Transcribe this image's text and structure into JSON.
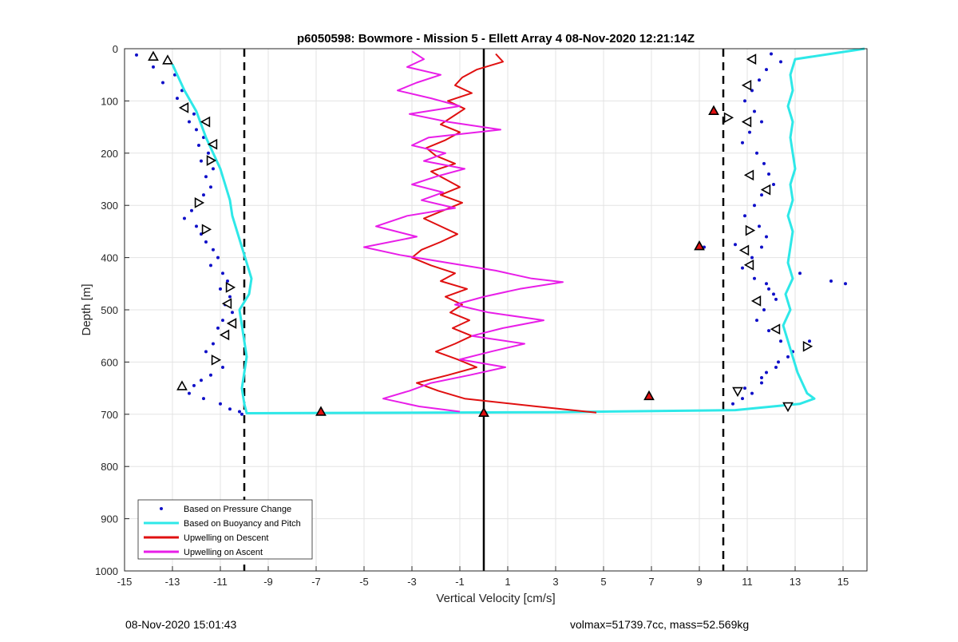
{
  "chart_data": {
    "type": "scatter",
    "title": "p6050598: Bowmore - Mission 5 - Ellett Array 4 08-Nov-2020 12:21:14Z",
    "xlabel": "Vertical Velocity [cm/s]",
    "ylabel": "Depth [m]",
    "xlim": [
      -15,
      16
    ],
    "ylim": [
      1000,
      0
    ],
    "y_reversed": true,
    "xticks": [
      -15,
      -13,
      -11,
      -9,
      -7,
      -5,
      -3,
      -1,
      1,
      3,
      5,
      7,
      9,
      11,
      13,
      15
    ],
    "yticks": [
      0,
      100,
      200,
      300,
      400,
      500,
      600,
      700,
      800,
      900,
      1000
    ],
    "grid": true,
    "legend_position": "bottom-left",
    "reference_lines": [
      {
        "x": -10,
        "style": "dashed",
        "color": "#000000"
      },
      {
        "x": 0,
        "style": "solid",
        "color": "#000000"
      },
      {
        "x": 10,
        "style": "dashed",
        "color": "#000000"
      }
    ],
    "series": [
      {
        "name": "Based on Pressure Change",
        "kind": "points",
        "color": "#1010c8",
        "x": [
          -14.5,
          -13.2,
          -13.8,
          -12.9,
          -13.4,
          -12.6,
          -12.8,
          -12.5,
          -12.1,
          -12.3,
          -12.0,
          -11.7,
          -11.9,
          -11.5,
          -11.8,
          -11.3,
          -11.6,
          -11.4,
          -11.7,
          -11.9,
          -12.2,
          -12.5,
          -12.0,
          -11.8,
          -11.6,
          -11.3,
          -11.1,
          -11.4,
          -10.9,
          -10.7,
          -11.0,
          -10.6,
          -10.8,
          -10.5,
          -10.9,
          -11.1,
          -10.7,
          -11.3,
          -11.6,
          -11.2,
          -10.9,
          -11.4,
          -11.8,
          -12.1,
          -12.6,
          -12.3,
          -11.7,
          -11.0,
          -10.6,
          -10.2,
          -10.1,
          12.0,
          12.4,
          11.8,
          11.5,
          11.2,
          10.9,
          11.3,
          11.6,
          11.1,
          10.8,
          11.4,
          11.7,
          11.9,
          12.1,
          11.6,
          11.3,
          10.9,
          11.5,
          11.8,
          11.6,
          11.2,
          10.5,
          9.2,
          10.8,
          11.3,
          11.9,
          12.2,
          11.7,
          11.4,
          11.9,
          12.4,
          12.1,
          11.8,
          13.2,
          14.5,
          15.1,
          13.6,
          12.9,
          12.3,
          11.8,
          11.6,
          11.2,
          10.8,
          10.4,
          10.9,
          11.6,
          12.2,
          12.7
        ],
        "y": [
          12,
          20,
          35,
          50,
          65,
          80,
          95,
          110,
          125,
          140,
          155,
          170,
          185,
          200,
          215,
          230,
          245,
          265,
          280,
          295,
          310,
          325,
          340,
          355,
          370,
          385,
          400,
          415,
          430,
          445,
          460,
          475,
          490,
          505,
          520,
          535,
          550,
          565,
          580,
          595,
          610,
          625,
          635,
          645,
          650,
          660,
          670,
          680,
          690,
          695,
          700,
          10,
          25,
          40,
          60,
          80,
          100,
          120,
          140,
          160,
          180,
          200,
          220,
          240,
          260,
          280,
          300,
          320,
          340,
          360,
          380,
          400,
          375,
          380,
          420,
          440,
          460,
          480,
          500,
          520,
          540,
          560,
          470,
          450,
          430,
          445,
          450,
          560,
          580,
          600,
          620,
          640,
          660,
          670,
          680,
          650,
          630,
          610,
          590
        ]
      },
      {
        "name": "Based on Buoyancy and Pitch",
        "kind": "line",
        "color": "#2ee8e8",
        "x": [
          15.9,
          13.0,
          12.8,
          12.9,
          12.7,
          12.9,
          12.8,
          12.9,
          13.0,
          12.8,
          12.9,
          12.7,
          12.9,
          12.8,
          12.7,
          12.9,
          12.6,
          12.8,
          12.5,
          12.7,
          12.9,
          13.1,
          13.3,
          13.5,
          13.8,
          13.2,
          10.5,
          3.0,
          -9.9,
          -10.0,
          -10.1,
          -10.0,
          -9.9,
          -10.0,
          -10.1,
          -10.2,
          -9.8,
          -9.7,
          -9.9,
          -10.1,
          -10.3,
          -10.5,
          -10.6,
          -10.8,
          -11.0,
          -11.3,
          -11.6,
          -12.0,
          -12.5,
          -13.0
        ],
        "y": [
          0,
          20,
          50,
          80,
          110,
          140,
          170,
          200,
          230,
          260,
          290,
          320,
          350,
          380,
          410,
          440,
          470,
          500,
          530,
          560,
          590,
          620,
          640,
          660,
          670,
          680,
          692,
          696,
          698,
          680,
          650,
          620,
          590,
          560,
          530,
          500,
          470,
          440,
          410,
          380,
          350,
          320,
          290,
          260,
          230,
          200,
          170,
          120,
          80,
          30
        ]
      },
      {
        "name": "Upwelling on Descent",
        "kind": "line",
        "color": "#e01010",
        "x": [
          0.5,
          0.8,
          -0.3,
          -0.9,
          -1.2,
          -0.5,
          -1.5,
          -0.8,
          -1.3,
          -1.8,
          -1.0,
          -1.6,
          -2.4,
          -2.0,
          -1.2,
          -2.2,
          -1.6,
          -1.0,
          -1.8,
          -0.9,
          -1.7,
          -2.5,
          -1.8,
          -1.1,
          -1.8,
          -2.6,
          -3.0,
          -2.2,
          -1.2,
          -1.8,
          -0.7,
          -1.6,
          -0.9,
          -1.4,
          -0.6,
          -1.3,
          -0.5,
          -1.2,
          -2.0,
          -1.1,
          -0.3,
          -1.5,
          -2.8,
          -1.9,
          -0.8,
          2.2,
          4.7
        ],
        "y": [
          10,
          25,
          40,
          55,
          70,
          85,
          100,
          115,
          130,
          145,
          160,
          175,
          190,
          205,
          220,
          235,
          250,
          265,
          280,
          295,
          310,
          325,
          340,
          355,
          370,
          385,
          400,
          415,
          430,
          445,
          460,
          475,
          490,
          505,
          520,
          535,
          550,
          565,
          580,
          595,
          610,
          625,
          640,
          655,
          670,
          685,
          697
        ]
      },
      {
        "name": "Upwelling on Ascent",
        "kind": "line",
        "color": "#e81ee8",
        "x": [
          -3.0,
          -2.5,
          -3.2,
          -1.8,
          -2.8,
          -3.6,
          -2.2,
          -1.0,
          -3.1,
          -1.5,
          0.7,
          -2.3,
          -3.0,
          -1.6,
          -2.5,
          -0.8,
          -2.0,
          -3.0,
          -1.7,
          -2.6,
          -1.2,
          -3.2,
          -4.5,
          -2.8,
          -5.0,
          -3.5,
          -1.5,
          0.5,
          2.0,
          3.3,
          1.5,
          0.0,
          -1.2,
          0.2,
          2.5,
          0.8,
          -0.5,
          1.7,
          0.3,
          -1.0,
          0.9,
          -0.6,
          -2.2,
          -3.1,
          -4.2,
          -2.7,
          -1.0
        ],
        "y": [
          5,
          20,
          35,
          50,
          65,
          80,
          95,
          110,
          125,
          140,
          155,
          170,
          185,
          200,
          215,
          230,
          245,
          260,
          275,
          290,
          305,
          320,
          340,
          360,
          380,
          395,
          410,
          425,
          440,
          447,
          460,
          475,
          490,
          505,
          520,
          535,
          550,
          565,
          580,
          595,
          610,
          625,
          640,
          655,
          670,
          685,
          695
        ]
      }
    ],
    "markers": [
      {
        "x": -13.8,
        "y": 15,
        "shape": "up",
        "fill": "#ffffff"
      },
      {
        "x": -13.2,
        "y": 22,
        "shape": "up",
        "fill": "#ffffff"
      },
      {
        "x": -12.5,
        "y": 113,
        "shape": "left",
        "fill": "#ffffff"
      },
      {
        "x": -11.6,
        "y": 140,
        "shape": "left",
        "fill": "#ffffff"
      },
      {
        "x": -11.3,
        "y": 183,
        "shape": "left",
        "fill": "#ffffff"
      },
      {
        "x": -11.4,
        "y": 214,
        "shape": "right",
        "fill": "#ffffff"
      },
      {
        "x": -11.9,
        "y": 295,
        "shape": "right",
        "fill": "#ffffff"
      },
      {
        "x": -11.6,
        "y": 346,
        "shape": "right",
        "fill": "#ffffff"
      },
      {
        "x": -10.6,
        "y": 457,
        "shape": "right",
        "fill": "#ffffff"
      },
      {
        "x": -10.7,
        "y": 488,
        "shape": "left",
        "fill": "#ffffff"
      },
      {
        "x": -10.5,
        "y": 526,
        "shape": "left",
        "fill": "#ffffff"
      },
      {
        "x": -10.8,
        "y": 548,
        "shape": "left",
        "fill": "#ffffff"
      },
      {
        "x": -11.2,
        "y": 596,
        "shape": "right",
        "fill": "#ffffff"
      },
      {
        "x": -12.6,
        "y": 646,
        "shape": "up",
        "fill": "#ffffff"
      },
      {
        "x": 11.2,
        "y": 20,
        "shape": "left",
        "fill": "#ffffff"
      },
      {
        "x": 11.0,
        "y": 70,
        "shape": "left",
        "fill": "#ffffff"
      },
      {
        "x": 10.2,
        "y": 132,
        "shape": "right",
        "fill": "#ffffff"
      },
      {
        "x": 11.0,
        "y": 140,
        "shape": "left",
        "fill": "#ffffff"
      },
      {
        "x": 11.1,
        "y": 242,
        "shape": "left",
        "fill": "#ffffff"
      },
      {
        "x": 11.8,
        "y": 270,
        "shape": "left",
        "fill": "#ffffff"
      },
      {
        "x": 11.1,
        "y": 348,
        "shape": "right",
        "fill": "#ffffff"
      },
      {
        "x": 10.9,
        "y": 386,
        "shape": "left",
        "fill": "#ffffff"
      },
      {
        "x": 11.1,
        "y": 414,
        "shape": "left",
        "fill": "#ffffff"
      },
      {
        "x": 11.4,
        "y": 483,
        "shape": "left",
        "fill": "#ffffff"
      },
      {
        "x": 12.2,
        "y": 537,
        "shape": "left",
        "fill": "#ffffff"
      },
      {
        "x": 13.5,
        "y": 570,
        "shape": "right",
        "fill": "#ffffff"
      },
      {
        "x": 10.6,
        "y": 656,
        "shape": "down",
        "fill": "#ffffff"
      },
      {
        "x": 12.7,
        "y": 685,
        "shape": "down",
        "fill": "#ffffff"
      },
      {
        "x": -6.8,
        "y": 695,
        "shape": "up",
        "fill": "#e01010"
      },
      {
        "x": 9.6,
        "y": 119,
        "shape": "up",
        "fill": "#e01010"
      },
      {
        "x": 9.0,
        "y": 378,
        "shape": "up",
        "fill": "#e01010"
      },
      {
        "x": 6.9,
        "y": 665,
        "shape": "up",
        "fill": "#e01010"
      },
      {
        "x": 0.0,
        "y": 697,
        "shape": "up",
        "fill": "#e01010"
      }
    ]
  },
  "footer": {
    "timestamp": "08-Nov-2020 15:01:43",
    "stats": "volmax=51739.7cc, mass=52.569kg"
  }
}
